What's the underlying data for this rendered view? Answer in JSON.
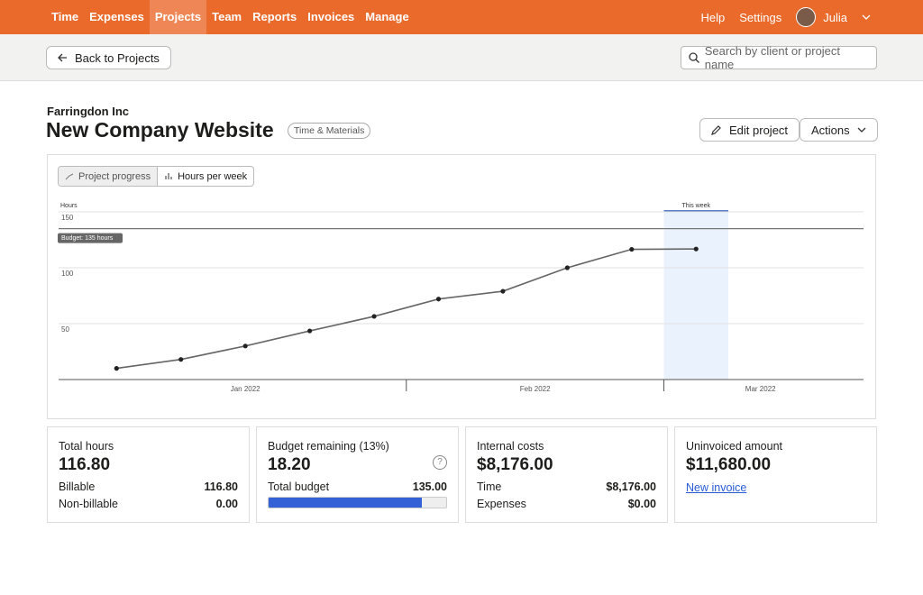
{
  "nav": {
    "items": [
      "Time",
      "Expenses",
      "Projects",
      "Team",
      "Reports",
      "Invoices",
      "Manage"
    ],
    "help": "Help",
    "settings": "Settings",
    "user": "Julia"
  },
  "toolbar": {
    "back": "Back to Projects",
    "search_placeholder": "Search by client or project name"
  },
  "header": {
    "client": "Farringdon Inc",
    "title": "New Company Website",
    "tag": "Time & Materials",
    "edit": "Edit project",
    "actions": "Actions"
  },
  "tabs": [
    "Project progress",
    "Hours per week"
  ],
  "chart_data": {
    "type": "line",
    "y_label": "Hours",
    "x": [
      0,
      1,
      2,
      3,
      4,
      5,
      6,
      7,
      8,
      9
    ],
    "values": [
      10,
      18,
      30,
      43.5,
      56.5,
      72,
      79,
      100,
      116.5,
      116.8
    ],
    "color": "#666666",
    "xlim": [
      -0.9,
      11.6
    ],
    "xticks": [
      {
        "value": 2,
        "label": "Jan 2022"
      },
      {
        "value": 6.5,
        "label": "Feb 2022"
      },
      {
        "value": 10,
        "label": "Mar 2022"
      }
    ],
    "ylim": [
      0,
      150
    ],
    "yticks": [
      50,
      100,
      150
    ],
    "grid": true,
    "budget": {
      "value": 135,
      "label": "Budget: 135 hours"
    },
    "highlight": {
      "x": 9,
      "label": "This week"
    }
  },
  "cards": [
    {
      "title": "Total hours",
      "value": "116.80",
      "rows": [
        [
          "Billable",
          "116.80"
        ],
        [
          "Non-billable",
          "0.00"
        ]
      ]
    },
    {
      "title": "Budget remaining (13%)",
      "value": "18.20",
      "rows": [
        [
          "Total budget",
          "135.00"
        ]
      ]
    },
    {
      "title": "Internal costs",
      "value": "$8,176.00",
      "rows": [
        [
          "Time",
          "$8,176.00"
        ],
        [
          "Expenses",
          "$0.00"
        ]
      ]
    },
    {
      "title": "Uninvoiced amount",
      "value": "$11,680.00",
      "link": "New invoice"
    }
  ]
}
